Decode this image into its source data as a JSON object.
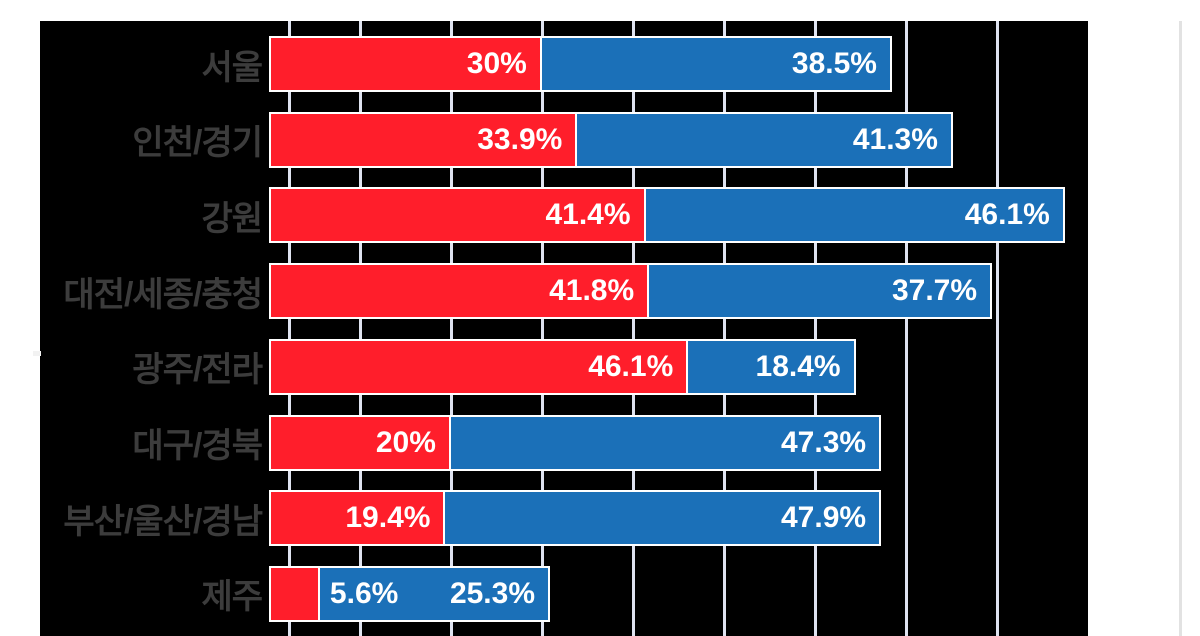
{
  "chart_data": {
    "type": "bar",
    "orientation": "horizontal-stacked",
    "title": "",
    "xlabel": "",
    "ylabel": "",
    "categories": [
      "서울",
      "인천/경기",
      "강원",
      "대전/세종/충청",
      "광주/전라",
      "대구/경북",
      "부산/울산/경남",
      "제주"
    ],
    "series": [
      {
        "name": "red",
        "color": "#ff1e2b",
        "values": [
          30,
          33.9,
          41.4,
          41.8,
          46.1,
          20,
          19.4,
          5.6
        ],
        "labels": [
          "30%",
          "33.9%",
          "41.4%",
          "41.8%",
          "46.1%",
          "20%",
          "19.4%",
          "5.6%"
        ]
      },
      {
        "name": "blue",
        "color": "#1b70b8",
        "values": [
          38.5,
          41.3,
          46.1,
          37.7,
          18.4,
          47.3,
          47.9,
          25.3
        ],
        "labels": [
          "38.5%",
          "41.3%",
          "46.1%",
          "37.7%",
          "18.4%",
          "47.3%",
          "47.9%",
          "25.3%"
        ]
      }
    ],
    "xlim": [
      0,
      90
    ],
    "gridline_interval_pct": 10,
    "extra_tick_pct": 2.2,
    "grid_visible": true,
    "legend_position": "none",
    "plot_background": "#000000"
  },
  "style": {
    "page_background": "#ffffff",
    "chart_background": "#000000",
    "category_label_color": "#3c3c3c",
    "value_label_color": "#ffffff",
    "gridline_color": "#dfe3f0",
    "bar_outline_color": "#ffffff",
    "page_edge_line_color": "#e2e2e2",
    "notch_color": "#f2f2f2"
  }
}
